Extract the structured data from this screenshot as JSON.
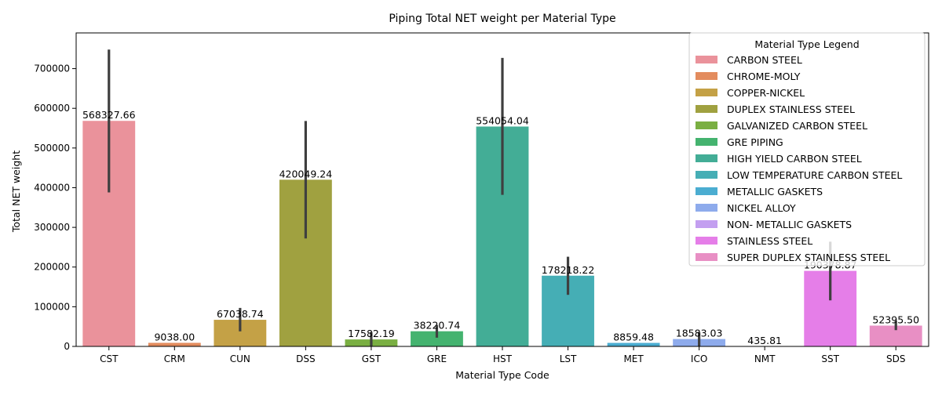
{
  "chart_data": {
    "type": "bar",
    "title": "Piping Total NET weight per Material Type",
    "xlabel": "Material Type Code",
    "ylabel": "Total NET weight",
    "ylim": [
      0,
      790000
    ],
    "yticks": [
      0,
      100000,
      200000,
      300000,
      400000,
      500000,
      600000,
      700000
    ],
    "grid": false,
    "legend_title": "Material Type Legend",
    "legend_position": "top-right",
    "categories": [
      "CST",
      "CRM",
      "CUN",
      "DSS",
      "GST",
      "GRE",
      "HST",
      "LST",
      "MET",
      "ICO",
      "NMT",
      "SST",
      "SDS"
    ],
    "values": [
      568327.66,
      9038.0,
      67038.74,
      420049.24,
      17582.19,
      38220.74,
      554054.04,
      178218.22,
      8859.48,
      18583.03,
      435.81,
      190378.87,
      52395.5
    ],
    "value_labels": [
      "568327.66",
      "9038.00",
      "67038.74",
      "420049.24",
      "17582.19",
      "38220.74",
      "554054.04",
      "178218.22",
      "8859.48",
      "18583.03",
      "435.81",
      "190378.87",
      "52395.50"
    ],
    "error_bars": [
      [
        388000,
        748000
      ],
      [
        9038,
        9038
      ],
      [
        38000,
        97000
      ],
      [
        272000,
        568000
      ],
      [
        0,
        36000
      ],
      [
        22000,
        54000
      ],
      [
        382000,
        727000
      ],
      [
        130000,
        226000
      ],
      [
        8859.48,
        8859.48
      ],
      [
        0,
        36000
      ],
      [
        435.81,
        435.81
      ],
      [
        116000,
        264000
      ],
      [
        41000,
        64000
      ]
    ],
    "series": [
      {
        "name": "CARBON STEEL",
        "color": "#ea929b"
      },
      {
        "name": "CHROME-MOLY",
        "color": "#e38c5e"
      },
      {
        "name": "COPPER-NICKEL",
        "color": "#c4a146"
      },
      {
        "name": "DUPLEX STAINLESS STEEL",
        "color": "#a0a140"
      },
      {
        "name": "GALVANIZED CARBON STEEL",
        "color": "#7aaf42"
      },
      {
        "name": "GRE PIPING",
        "color": "#44b36f"
      },
      {
        "name": "HIGH YIELD CARBON STEEL",
        "color": "#43ad96"
      },
      {
        "name": "LOW TEMPERATURE CARBON STEEL",
        "color": "#45aeb5"
      },
      {
        "name": "METALLIC GASKETS",
        "color": "#4badd1"
      },
      {
        "name": "NICKEL ALLOY",
        "color": "#8eabec"
      },
      {
        "name": "NON- METALLIC GASKETS",
        "color": "#c39ff0"
      },
      {
        "name": "STAINLESS STEEL",
        "color": "#e57ee8"
      },
      {
        "name": "SUPER DUPLEX STAINLESS STEEL",
        "color": "#e88fc4"
      }
    ]
  }
}
